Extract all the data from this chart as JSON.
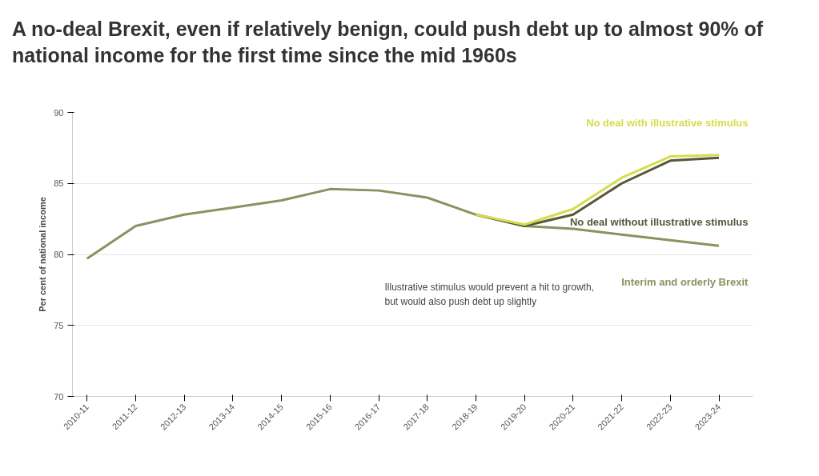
{
  "chart_data": {
    "type": "line",
    "title": "A no-deal Brexit, even if relatively benign, could push debt up to almost 90% of national income for the first time since the mid 1960s",
    "ylabel": "Per cent of national income",
    "categories": [
      "2010-11",
      "2011-12",
      "2012-13",
      "2013-14",
      "2014-15",
      "2015-16",
      "2016-17",
      "2017-18",
      "2018-19",
      "2019-20",
      "2020-21",
      "2021-22",
      "2022-23",
      "2023-24"
    ],
    "series": [
      {
        "name": "Interim and orderly Brexit",
        "color": "#8c9160",
        "values": [
          79.7,
          82.0,
          82.8,
          83.3,
          83.8,
          84.6,
          84.5,
          84.0,
          82.8,
          82.0,
          81.8,
          81.4,
          81.0,
          80.6
        ]
      },
      {
        "name": "No deal without illustrative stimulus",
        "color": "#55583a",
        "values": [
          null,
          null,
          null,
          null,
          null,
          null,
          null,
          null,
          82.8,
          82.0,
          82.8,
          85.0,
          86.6,
          86.8
        ]
      },
      {
        "name": "No deal with illustrative stimulus",
        "color": "#d6dc4c",
        "values": [
          null,
          null,
          null,
          null,
          null,
          null,
          null,
          null,
          82.8,
          82.1,
          83.2,
          85.4,
          86.9,
          87.0
        ]
      }
    ],
    "ylim": [
      70,
      90
    ],
    "yticks": [
      70,
      75,
      80,
      85,
      90
    ],
    "grid": "y",
    "annotations": [
      "Illustrative stimulus would prevent a hit to growth, but would also push debt up slightly"
    ]
  }
}
